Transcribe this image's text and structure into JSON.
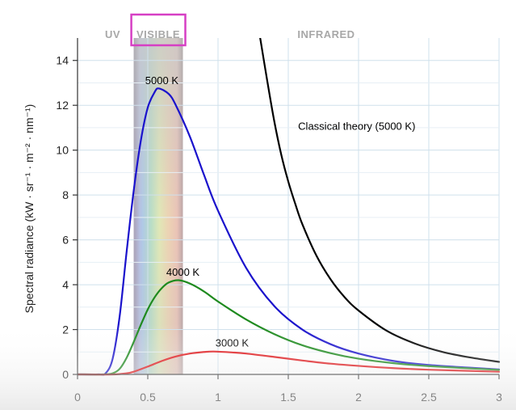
{
  "chart_data": {
    "type": "line",
    "title": "",
    "xlabel": "",
    "ylabel": "Spectral radiance (kW · sr⁻¹ · m⁻² · nm⁻¹)",
    "xlim": [
      0,
      3
    ],
    "ylim": [
      0,
      15
    ],
    "x_ticks": [
      "0",
      "0.5",
      "1",
      "1.5",
      "2",
      "2.5",
      "3"
    ],
    "y_ticks": [
      "0",
      "2",
      "4",
      "6",
      "8",
      "10",
      "12",
      "14"
    ],
    "grid": true,
    "regions": [
      {
        "label": "UV",
        "x_range": [
          0,
          0.4
        ]
      },
      {
        "label": "VISIBLE",
        "x_range": [
          0.4,
          0.75
        ],
        "highlight_color": "#d63fc4"
      },
      {
        "label": "INFRARED",
        "x_range": [
          0.75,
          3
        ]
      }
    ],
    "series": [
      {
        "name": "5000 K",
        "color": "#1a12cc",
        "x": [
          0.15,
          0.2,
          0.25,
          0.3,
          0.35,
          0.4,
          0.45,
          0.5,
          0.55,
          0.58,
          0.65,
          0.7,
          0.8,
          0.9,
          1.0,
          1.2,
          1.4,
          1.6,
          1.8,
          2.0,
          2.25,
          2.5,
          3.0
        ],
        "y": [
          0.0,
          0.05,
          0.7,
          2.6,
          5.5,
          8.2,
          10.4,
          11.9,
          12.6,
          12.75,
          12.5,
          12.0,
          10.6,
          8.9,
          7.3,
          4.75,
          3.05,
          2.0,
          1.35,
          0.93,
          0.6,
          0.42,
          0.22
        ]
      },
      {
        "name": "4000 K",
        "color": "#1e8a1e",
        "x": [
          0.18,
          0.25,
          0.3,
          0.35,
          0.4,
          0.45,
          0.5,
          0.55,
          0.6,
          0.65,
          0.72,
          0.8,
          0.9,
          1.0,
          1.2,
          1.4,
          1.6,
          1.8,
          2.0,
          2.25,
          2.5,
          3.0
        ],
        "y": [
          0.0,
          0.05,
          0.25,
          0.75,
          1.45,
          2.2,
          2.9,
          3.45,
          3.85,
          4.1,
          4.2,
          4.05,
          3.7,
          3.25,
          2.45,
          1.8,
          1.3,
          0.95,
          0.7,
          0.5,
          0.37,
          0.2
        ]
      },
      {
        "name": "3000 K",
        "color": "#e0181c",
        "x": [
          0.25,
          0.35,
          0.4,
          0.5,
          0.6,
          0.7,
          0.8,
          0.9,
          0.97,
          1.1,
          1.2,
          1.4,
          1.6,
          1.8,
          2.0,
          2.25,
          2.5,
          3.0
        ],
        "y": [
          0.0,
          0.05,
          0.12,
          0.35,
          0.6,
          0.8,
          0.93,
          1.0,
          1.02,
          0.98,
          0.93,
          0.78,
          0.62,
          0.48,
          0.38,
          0.28,
          0.21,
          0.12
        ]
      },
      {
        "name": "Classical theory (5000 K)",
        "color": "#000000",
        "x": [
          1.3,
          1.35,
          1.4,
          1.45,
          1.5,
          1.55,
          1.6,
          1.7,
          1.8,
          1.9,
          2.0,
          2.2,
          2.4,
          2.6,
          2.8,
          3.0
        ],
        "y": [
          15.0,
          13.1,
          11.3,
          9.8,
          8.6,
          7.6,
          6.7,
          5.3,
          4.25,
          3.45,
          2.85,
          1.95,
          1.38,
          1.0,
          0.75,
          0.56
        ]
      }
    ],
    "annotations": [
      {
        "text": "5000 K",
        "x": 0.6,
        "y": 12.95
      },
      {
        "text": "4000 K",
        "x": 0.75,
        "y": 4.4
      },
      {
        "text": "3000 K",
        "x": 1.1,
        "y": 1.25
      },
      {
        "text": "Classical theory (5000 K)",
        "x": 1.57,
        "y": 10.9
      }
    ]
  }
}
